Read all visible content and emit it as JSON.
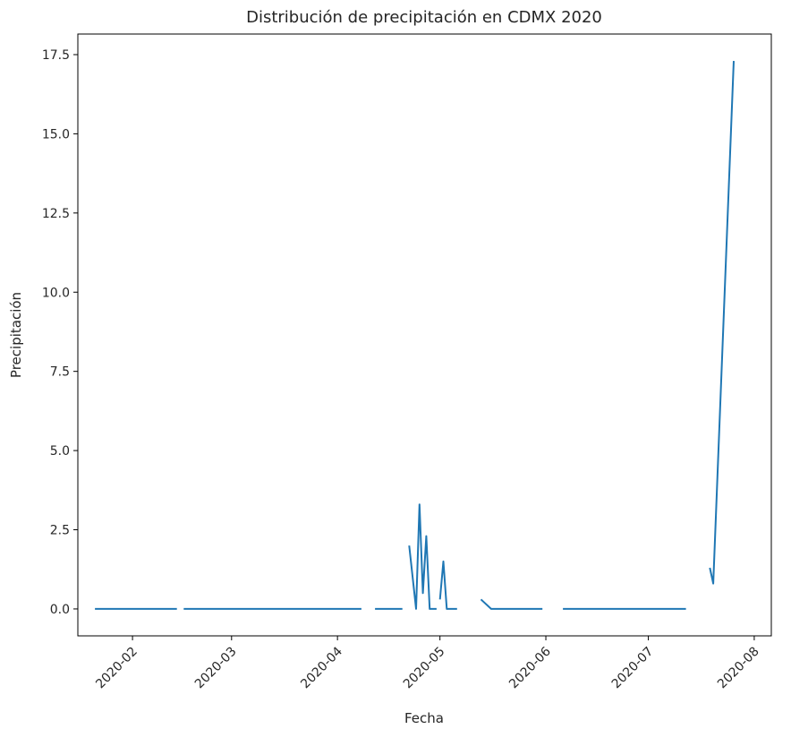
{
  "chart_data": {
    "type": "line",
    "title": "Distribución de precipitación en CDMX 2020",
    "xlabel": "Fecha",
    "ylabel": "Precipitación",
    "x_type": "date",
    "xlim": [
      "2020-01-16",
      "2020-08-06"
    ],
    "ylim": [
      -0.85,
      18.15
    ],
    "x_ticks": [
      "2020-02-01",
      "2020-03-01",
      "2020-04-01",
      "2020-05-01",
      "2020-06-01",
      "2020-07-01",
      "2020-08-01"
    ],
    "x_tick_labels": [
      "2020-02",
      "2020-03",
      "2020-04",
      "2020-05",
      "2020-06",
      "2020-07",
      "2020-08"
    ],
    "y_ticks": [
      0.0,
      2.5,
      5.0,
      7.5,
      10.0,
      12.5,
      15.0,
      17.5
    ],
    "y_tick_labels": [
      "0.0",
      "2.5",
      "5.0",
      "7.5",
      "10.0",
      "12.5",
      "15.0",
      "17.5"
    ],
    "grid": false,
    "line_color": "#1f77b4",
    "series": [
      {
        "segments": [
          [
            [
              "2020-01-21",
              0.0
            ],
            [
              "2020-02-14",
              0.0
            ]
          ],
          [
            [
              "2020-02-16",
              0.0
            ],
            [
              "2020-04-08",
              0.0
            ]
          ],
          [
            [
              "2020-04-12",
              0.0
            ],
            [
              "2020-04-20",
              0.0
            ]
          ],
          [
            [
              "2020-04-22",
              2.0
            ],
            [
              "2020-04-24",
              0.0
            ],
            [
              "2020-04-25",
              3.3
            ],
            [
              "2020-04-26",
              0.5
            ],
            [
              "2020-04-27",
              2.3
            ],
            [
              "2020-04-28",
              0.0
            ],
            [
              "2020-04-30",
              0.0
            ]
          ],
          [
            [
              "2020-05-01",
              0.3
            ],
            [
              "2020-05-02",
              1.5
            ],
            [
              "2020-05-03",
              0.0
            ],
            [
              "2020-05-06",
              0.0
            ]
          ],
          [
            [
              "2020-05-13",
              0.3
            ],
            [
              "2020-05-16",
              0.0
            ],
            [
              "2020-05-31",
              0.0
            ]
          ],
          [
            [
              "2020-06-06",
              0.0
            ],
            [
              "2020-07-12",
              0.0
            ]
          ],
          [
            [
              "2020-07-19",
              1.3
            ],
            [
              "2020-07-20",
              0.8
            ],
            [
              "2020-07-26",
              17.3
            ]
          ]
        ]
      }
    ]
  }
}
